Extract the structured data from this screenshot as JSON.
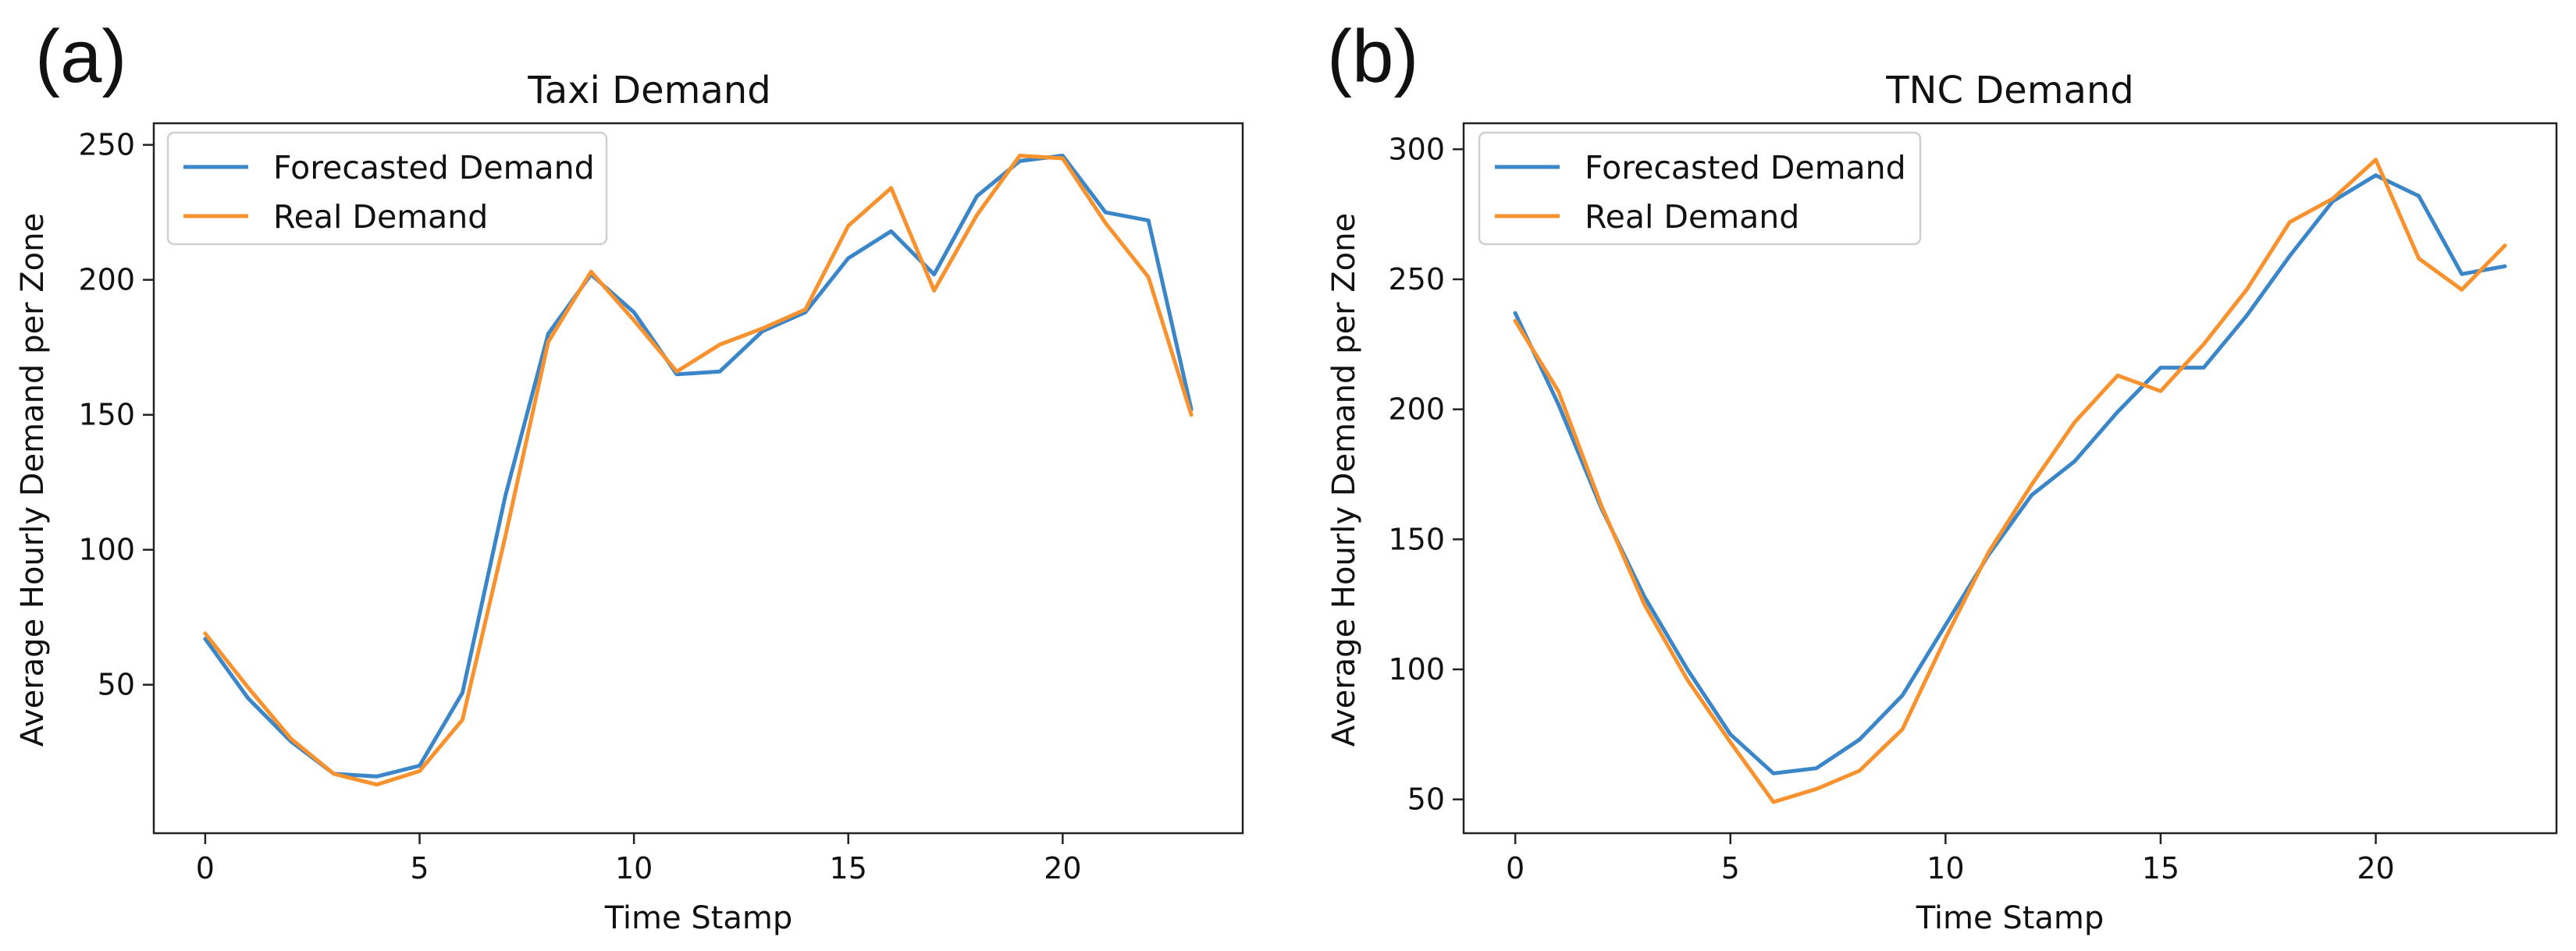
{
  "chart_data": [
    {
      "panel_label": "(a)",
      "type": "line",
      "title": "Taxi Demand",
      "xlabel": "Time Stamp",
      "ylabel": "Average Hourly Demand per Zone",
      "xlim": [
        -1.2,
        24.2
      ],
      "ylim": [
        -5,
        258
      ],
      "xticks": [
        0,
        5,
        10,
        15,
        20
      ],
      "yticks": [
        50,
        100,
        150,
        200,
        250
      ],
      "legend_position": "upper-left",
      "grid": false,
      "x": [
        0,
        1,
        2,
        3,
        4,
        5,
        6,
        7,
        8,
        9,
        10,
        11,
        12,
        13,
        14,
        15,
        16,
        17,
        18,
        19,
        20,
        21,
        22,
        23
      ],
      "series": [
        {
          "name": "Forecasted Demand",
          "color": "#3a86c8",
          "values": [
            67,
            45,
            29,
            17,
            16,
            20,
            47,
            120,
            180,
            202,
            188,
            165,
            166,
            181,
            188,
            208,
            218,
            202,
            231,
            244,
            246,
            225,
            222,
            152
          ]
        },
        {
          "name": "Real Demand",
          "color": "#f7922e",
          "values": [
            69,
            49,
            30,
            17,
            13,
            18,
            37,
            105,
            177,
            203,
            185,
            166,
            176,
            182,
            189,
            220,
            234,
            196,
            224,
            246,
            245,
            221,
            201,
            150
          ]
        }
      ]
    },
    {
      "panel_label": "(b)",
      "type": "line",
      "title": "TNC Demand",
      "xlabel": "Time Stamp",
      "ylabel": "Average Hourly Demand per Zone",
      "xlim": [
        -1.2,
        24.2
      ],
      "ylim": [
        37,
        310
      ],
      "xticks": [
        0,
        5,
        10,
        15,
        20
      ],
      "yticks": [
        50,
        100,
        150,
        200,
        250,
        300
      ],
      "legend_position": "upper-left",
      "grid": false,
      "x": [
        0,
        1,
        2,
        3,
        4,
        5,
        6,
        7,
        8,
        9,
        10,
        11,
        12,
        13,
        14,
        15,
        16,
        17,
        18,
        19,
        20,
        21,
        22,
        23
      ],
      "series": [
        {
          "name": "Forecasted Demand",
          "color": "#3a86c8",
          "values": [
            237,
            202,
            162,
            128,
            100,
            75,
            60,
            62,
            73,
            90,
            117,
            144,
            167,
            180,
            199,
            216,
            216,
            236,
            259,
            280,
            290,
            282,
            252,
            255
          ]
        },
        {
          "name": "Real Demand",
          "color": "#f7922e",
          "values": [
            234,
            207,
            163,
            125,
            96,
            72,
            49,
            54,
            61,
            77,
            112,
            145,
            171,
            195,
            213,
            207,
            225,
            246,
            272,
            281,
            296,
            258,
            246,
            263
          ]
        }
      ]
    }
  ]
}
